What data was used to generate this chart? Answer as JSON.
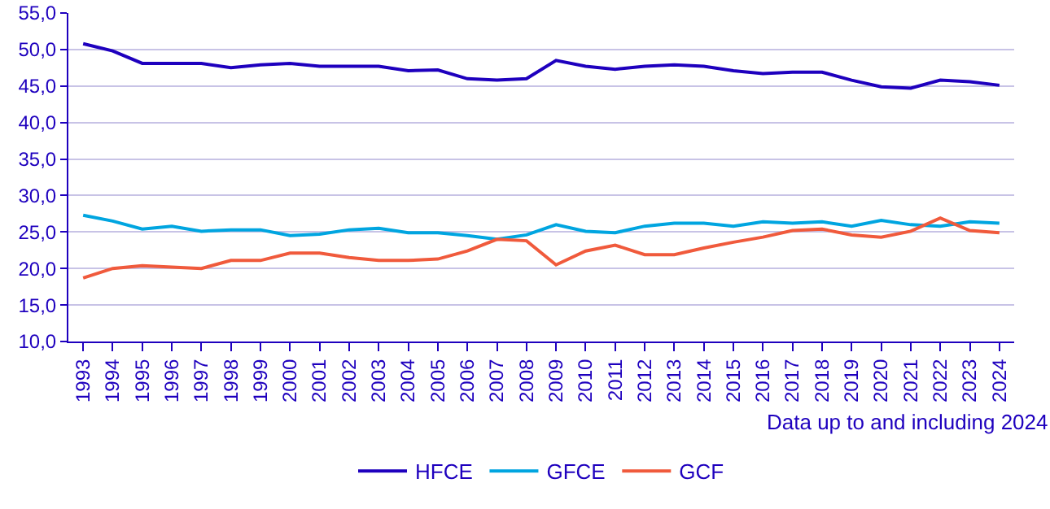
{
  "chart_data": {
    "type": "line",
    "categories": [
      "1993",
      "1994",
      "1995",
      "1996",
      "1997",
      "1998",
      "1999",
      "2000",
      "2001",
      "2002",
      "2003",
      "2004",
      "2005",
      "2006",
      "2007",
      "2008",
      "2009",
      "2010",
      "2011",
      "2012",
      "2013",
      "2014",
      "2015",
      "2016",
      "2017",
      "2018",
      "2019",
      "2020",
      "2021",
      "2022",
      "2023",
      "2024"
    ],
    "series": [
      {
        "name": "HFCE",
        "color": "#1e00be",
        "values": [
          50.8,
          49.8,
          48.1,
          48.1,
          48.1,
          47.5,
          47.9,
          48.1,
          47.7,
          47.7,
          47.7,
          47.1,
          47.2,
          46.0,
          45.8,
          46.0,
          48.5,
          47.7,
          47.3,
          47.7,
          47.9,
          47.7,
          47.1,
          46.7,
          46.9,
          46.9,
          45.8,
          44.9,
          44.7,
          45.8,
          45.6,
          45.1
        ]
      },
      {
        "name": "GFCE",
        "color": "#00a5e0",
        "values": [
          27.3,
          26.5,
          25.4,
          25.8,
          25.1,
          25.3,
          25.3,
          24.5,
          24.7,
          25.3,
          25.5,
          24.9,
          24.9,
          24.5,
          24.0,
          24.6,
          26.0,
          25.1,
          24.9,
          25.8,
          26.2,
          26.2,
          25.8,
          26.4,
          26.2,
          26.4,
          25.8,
          26.6,
          26.0,
          25.8,
          26.4,
          26.2
        ]
      },
      {
        "name": "GCF",
        "color": "#f05a3c",
        "values": [
          18.7,
          20.0,
          20.4,
          20.2,
          20.0,
          21.1,
          21.1,
          22.1,
          22.1,
          21.5,
          21.1,
          21.1,
          21.3,
          22.4,
          24.0,
          23.8,
          20.5,
          22.4,
          23.2,
          21.9,
          21.9,
          22.8,
          23.6,
          24.3,
          25.2,
          25.4,
          24.6,
          24.3,
          25.1,
          26.9,
          25.2,
          24.9
        ]
      }
    ],
    "ylim": [
      10,
      55
    ],
    "yticks": [
      {
        "value": 10,
        "label": "10,0"
      },
      {
        "value": 15,
        "label": "15,0"
      },
      {
        "value": 20,
        "label": "20,0"
      },
      {
        "value": 25,
        "label": "25,0"
      },
      {
        "value": 30,
        "label": "30,0"
      },
      {
        "value": 35,
        "label": "35,0"
      },
      {
        "value": 40,
        "label": "40,0"
      },
      {
        "value": 45,
        "label": "45,0"
      },
      {
        "value": 50,
        "label": "50,0"
      },
      {
        "value": 55,
        "label": "55,0"
      }
    ],
    "grid": "y",
    "legend": "bottom",
    "marker": "none",
    "line_style": "solid",
    "annotations": [
      "Data up to and including 2024"
    ]
  }
}
